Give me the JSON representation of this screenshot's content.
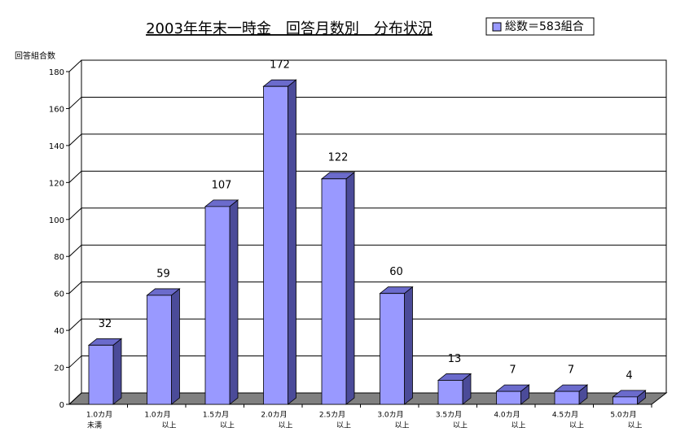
{
  "chart_data": {
    "type": "bar3d",
    "title": "2003年年末一時金　回答月数別　分布状況",
    "legend_label": "総数＝583組合",
    "y_label": "回答組合数",
    "categories": [
      [
        "1.0カ月",
        "未満"
      ],
      [
        "1.0カ月",
        "以上"
      ],
      [
        "1.5カ月",
        "以上"
      ],
      [
        "2.0カ月",
        "以上"
      ],
      [
        "2.5カ月",
        "以上"
      ],
      [
        "3.0カ月",
        "以上"
      ],
      [
        "3.5カ月",
        "以上"
      ],
      [
        "4.0カ月",
        "以上"
      ],
      [
        "4.5カ月",
        "以上"
      ],
      [
        "5.0カ月",
        "以上"
      ]
    ],
    "values": [
      32,
      59,
      107,
      172,
      122,
      60,
      13,
      7,
      7,
      4
    ],
    "color": "#9999ff",
    "ylim": [
      0,
      180
    ],
    "yticks": [
      0,
      20,
      40,
      60,
      80,
      100,
      120,
      140,
      160,
      180
    ],
    "grid": true
  }
}
